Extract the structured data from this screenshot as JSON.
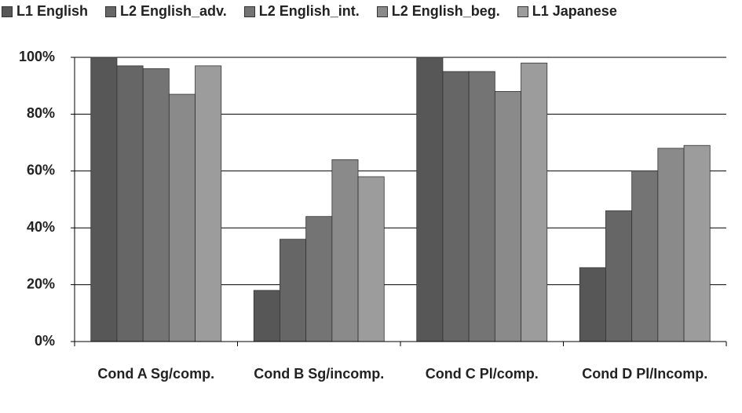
{
  "chart_data": {
    "type": "bar",
    "categories": [
      "Cond A Sg/comp.",
      "Cond B Sg/incomp.",
      "Cond C Pl/comp.",
      "Cond D Pl/Incomp."
    ],
    "series": [
      {
        "name": "L1 English",
        "color": "#575757",
        "values": [
          100,
          18,
          100,
          26
        ]
      },
      {
        "name": "L2 English_adv.",
        "color": "#666666",
        "values": [
          97,
          36,
          95,
          46
        ]
      },
      {
        "name": "L2 English_int.",
        "color": "#747474",
        "values": [
          96,
          44,
          95,
          60
        ]
      },
      {
        "name": "L2 English_beg.",
        "color": "#8a8a8a",
        "values": [
          87,
          64,
          88,
          68
        ]
      },
      {
        "name": "L1 Japanese",
        "color": "#9c9c9c",
        "values": [
          97,
          58,
          98,
          69
        ]
      }
    ],
    "ylim": [
      0,
      100
    ],
    "yticks": [
      {
        "value": 0,
        "label": "0%"
      },
      {
        "value": 20,
        "label": "20%"
      },
      {
        "value": 40,
        "label": "40%"
      },
      {
        "value": 60,
        "label": "60%"
      },
      {
        "value": 80,
        "label": "80%"
      },
      {
        "value": 100,
        "label": "100%"
      }
    ],
    "grid": true,
    "legend": "top"
  }
}
